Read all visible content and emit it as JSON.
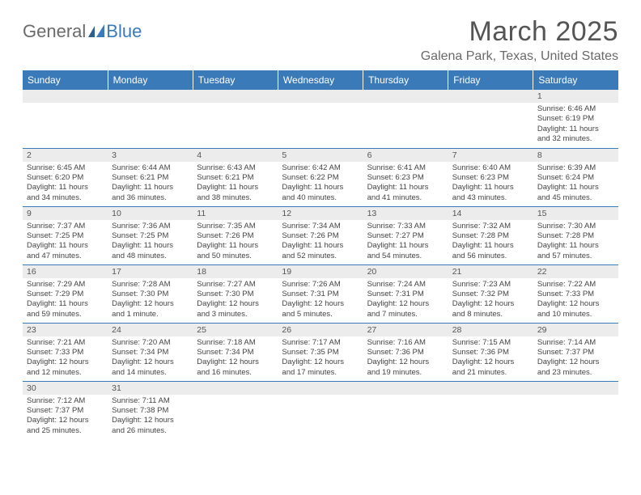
{
  "logo": {
    "part1": "General",
    "part2": "Blue"
  },
  "title": "March 2025",
  "location": "Galena Park, Texas, United States",
  "colors": {
    "header_bg": "#3a7ab8",
    "header_text": "#ffffff",
    "daynum_bg": "#ececec",
    "cell_border": "#3a7ab8",
    "body_text": "#444444",
    "title_text": "#555555"
  },
  "weekdays": [
    "Sunday",
    "Monday",
    "Tuesday",
    "Wednesday",
    "Thursday",
    "Friday",
    "Saturday"
  ],
  "weeks": [
    [
      null,
      null,
      null,
      null,
      null,
      null,
      {
        "d": "1",
        "sr": "Sunrise: 6:46 AM",
        "ss": "Sunset: 6:19 PM",
        "dl1": "Daylight: 11 hours",
        "dl2": "and 32 minutes."
      }
    ],
    [
      {
        "d": "2",
        "sr": "Sunrise: 6:45 AM",
        "ss": "Sunset: 6:20 PM",
        "dl1": "Daylight: 11 hours",
        "dl2": "and 34 minutes."
      },
      {
        "d": "3",
        "sr": "Sunrise: 6:44 AM",
        "ss": "Sunset: 6:21 PM",
        "dl1": "Daylight: 11 hours",
        "dl2": "and 36 minutes."
      },
      {
        "d": "4",
        "sr": "Sunrise: 6:43 AM",
        "ss": "Sunset: 6:21 PM",
        "dl1": "Daylight: 11 hours",
        "dl2": "and 38 minutes."
      },
      {
        "d": "5",
        "sr": "Sunrise: 6:42 AM",
        "ss": "Sunset: 6:22 PM",
        "dl1": "Daylight: 11 hours",
        "dl2": "and 40 minutes."
      },
      {
        "d": "6",
        "sr": "Sunrise: 6:41 AM",
        "ss": "Sunset: 6:23 PM",
        "dl1": "Daylight: 11 hours",
        "dl2": "and 41 minutes."
      },
      {
        "d": "7",
        "sr": "Sunrise: 6:40 AM",
        "ss": "Sunset: 6:23 PM",
        "dl1": "Daylight: 11 hours",
        "dl2": "and 43 minutes."
      },
      {
        "d": "8",
        "sr": "Sunrise: 6:39 AM",
        "ss": "Sunset: 6:24 PM",
        "dl1": "Daylight: 11 hours",
        "dl2": "and 45 minutes."
      }
    ],
    [
      {
        "d": "9",
        "sr": "Sunrise: 7:37 AM",
        "ss": "Sunset: 7:25 PM",
        "dl1": "Daylight: 11 hours",
        "dl2": "and 47 minutes."
      },
      {
        "d": "10",
        "sr": "Sunrise: 7:36 AM",
        "ss": "Sunset: 7:25 PM",
        "dl1": "Daylight: 11 hours",
        "dl2": "and 48 minutes."
      },
      {
        "d": "11",
        "sr": "Sunrise: 7:35 AM",
        "ss": "Sunset: 7:26 PM",
        "dl1": "Daylight: 11 hours",
        "dl2": "and 50 minutes."
      },
      {
        "d": "12",
        "sr": "Sunrise: 7:34 AM",
        "ss": "Sunset: 7:26 PM",
        "dl1": "Daylight: 11 hours",
        "dl2": "and 52 minutes."
      },
      {
        "d": "13",
        "sr": "Sunrise: 7:33 AM",
        "ss": "Sunset: 7:27 PM",
        "dl1": "Daylight: 11 hours",
        "dl2": "and 54 minutes."
      },
      {
        "d": "14",
        "sr": "Sunrise: 7:32 AM",
        "ss": "Sunset: 7:28 PM",
        "dl1": "Daylight: 11 hours",
        "dl2": "and 56 minutes."
      },
      {
        "d": "15",
        "sr": "Sunrise: 7:30 AM",
        "ss": "Sunset: 7:28 PM",
        "dl1": "Daylight: 11 hours",
        "dl2": "and 57 minutes."
      }
    ],
    [
      {
        "d": "16",
        "sr": "Sunrise: 7:29 AM",
        "ss": "Sunset: 7:29 PM",
        "dl1": "Daylight: 11 hours",
        "dl2": "and 59 minutes."
      },
      {
        "d": "17",
        "sr": "Sunrise: 7:28 AM",
        "ss": "Sunset: 7:30 PM",
        "dl1": "Daylight: 12 hours",
        "dl2": "and 1 minute."
      },
      {
        "d": "18",
        "sr": "Sunrise: 7:27 AM",
        "ss": "Sunset: 7:30 PM",
        "dl1": "Daylight: 12 hours",
        "dl2": "and 3 minutes."
      },
      {
        "d": "19",
        "sr": "Sunrise: 7:26 AM",
        "ss": "Sunset: 7:31 PM",
        "dl1": "Daylight: 12 hours",
        "dl2": "and 5 minutes."
      },
      {
        "d": "20",
        "sr": "Sunrise: 7:24 AM",
        "ss": "Sunset: 7:31 PM",
        "dl1": "Daylight: 12 hours",
        "dl2": "and 7 minutes."
      },
      {
        "d": "21",
        "sr": "Sunrise: 7:23 AM",
        "ss": "Sunset: 7:32 PM",
        "dl1": "Daylight: 12 hours",
        "dl2": "and 8 minutes."
      },
      {
        "d": "22",
        "sr": "Sunrise: 7:22 AM",
        "ss": "Sunset: 7:33 PM",
        "dl1": "Daylight: 12 hours",
        "dl2": "and 10 minutes."
      }
    ],
    [
      {
        "d": "23",
        "sr": "Sunrise: 7:21 AM",
        "ss": "Sunset: 7:33 PM",
        "dl1": "Daylight: 12 hours",
        "dl2": "and 12 minutes."
      },
      {
        "d": "24",
        "sr": "Sunrise: 7:20 AM",
        "ss": "Sunset: 7:34 PM",
        "dl1": "Daylight: 12 hours",
        "dl2": "and 14 minutes."
      },
      {
        "d": "25",
        "sr": "Sunrise: 7:18 AM",
        "ss": "Sunset: 7:34 PM",
        "dl1": "Daylight: 12 hours",
        "dl2": "and 16 minutes."
      },
      {
        "d": "26",
        "sr": "Sunrise: 7:17 AM",
        "ss": "Sunset: 7:35 PM",
        "dl1": "Daylight: 12 hours",
        "dl2": "and 17 minutes."
      },
      {
        "d": "27",
        "sr": "Sunrise: 7:16 AM",
        "ss": "Sunset: 7:36 PM",
        "dl1": "Daylight: 12 hours",
        "dl2": "and 19 minutes."
      },
      {
        "d": "28",
        "sr": "Sunrise: 7:15 AM",
        "ss": "Sunset: 7:36 PM",
        "dl1": "Daylight: 12 hours",
        "dl2": "and 21 minutes."
      },
      {
        "d": "29",
        "sr": "Sunrise: 7:14 AM",
        "ss": "Sunset: 7:37 PM",
        "dl1": "Daylight: 12 hours",
        "dl2": "and 23 minutes."
      }
    ],
    [
      {
        "d": "30",
        "sr": "Sunrise: 7:12 AM",
        "ss": "Sunset: 7:37 PM",
        "dl1": "Daylight: 12 hours",
        "dl2": "and 25 minutes."
      },
      {
        "d": "31",
        "sr": "Sunrise: 7:11 AM",
        "ss": "Sunset: 7:38 PM",
        "dl1": "Daylight: 12 hours",
        "dl2": "and 26 minutes."
      },
      null,
      null,
      null,
      null,
      null
    ]
  ]
}
